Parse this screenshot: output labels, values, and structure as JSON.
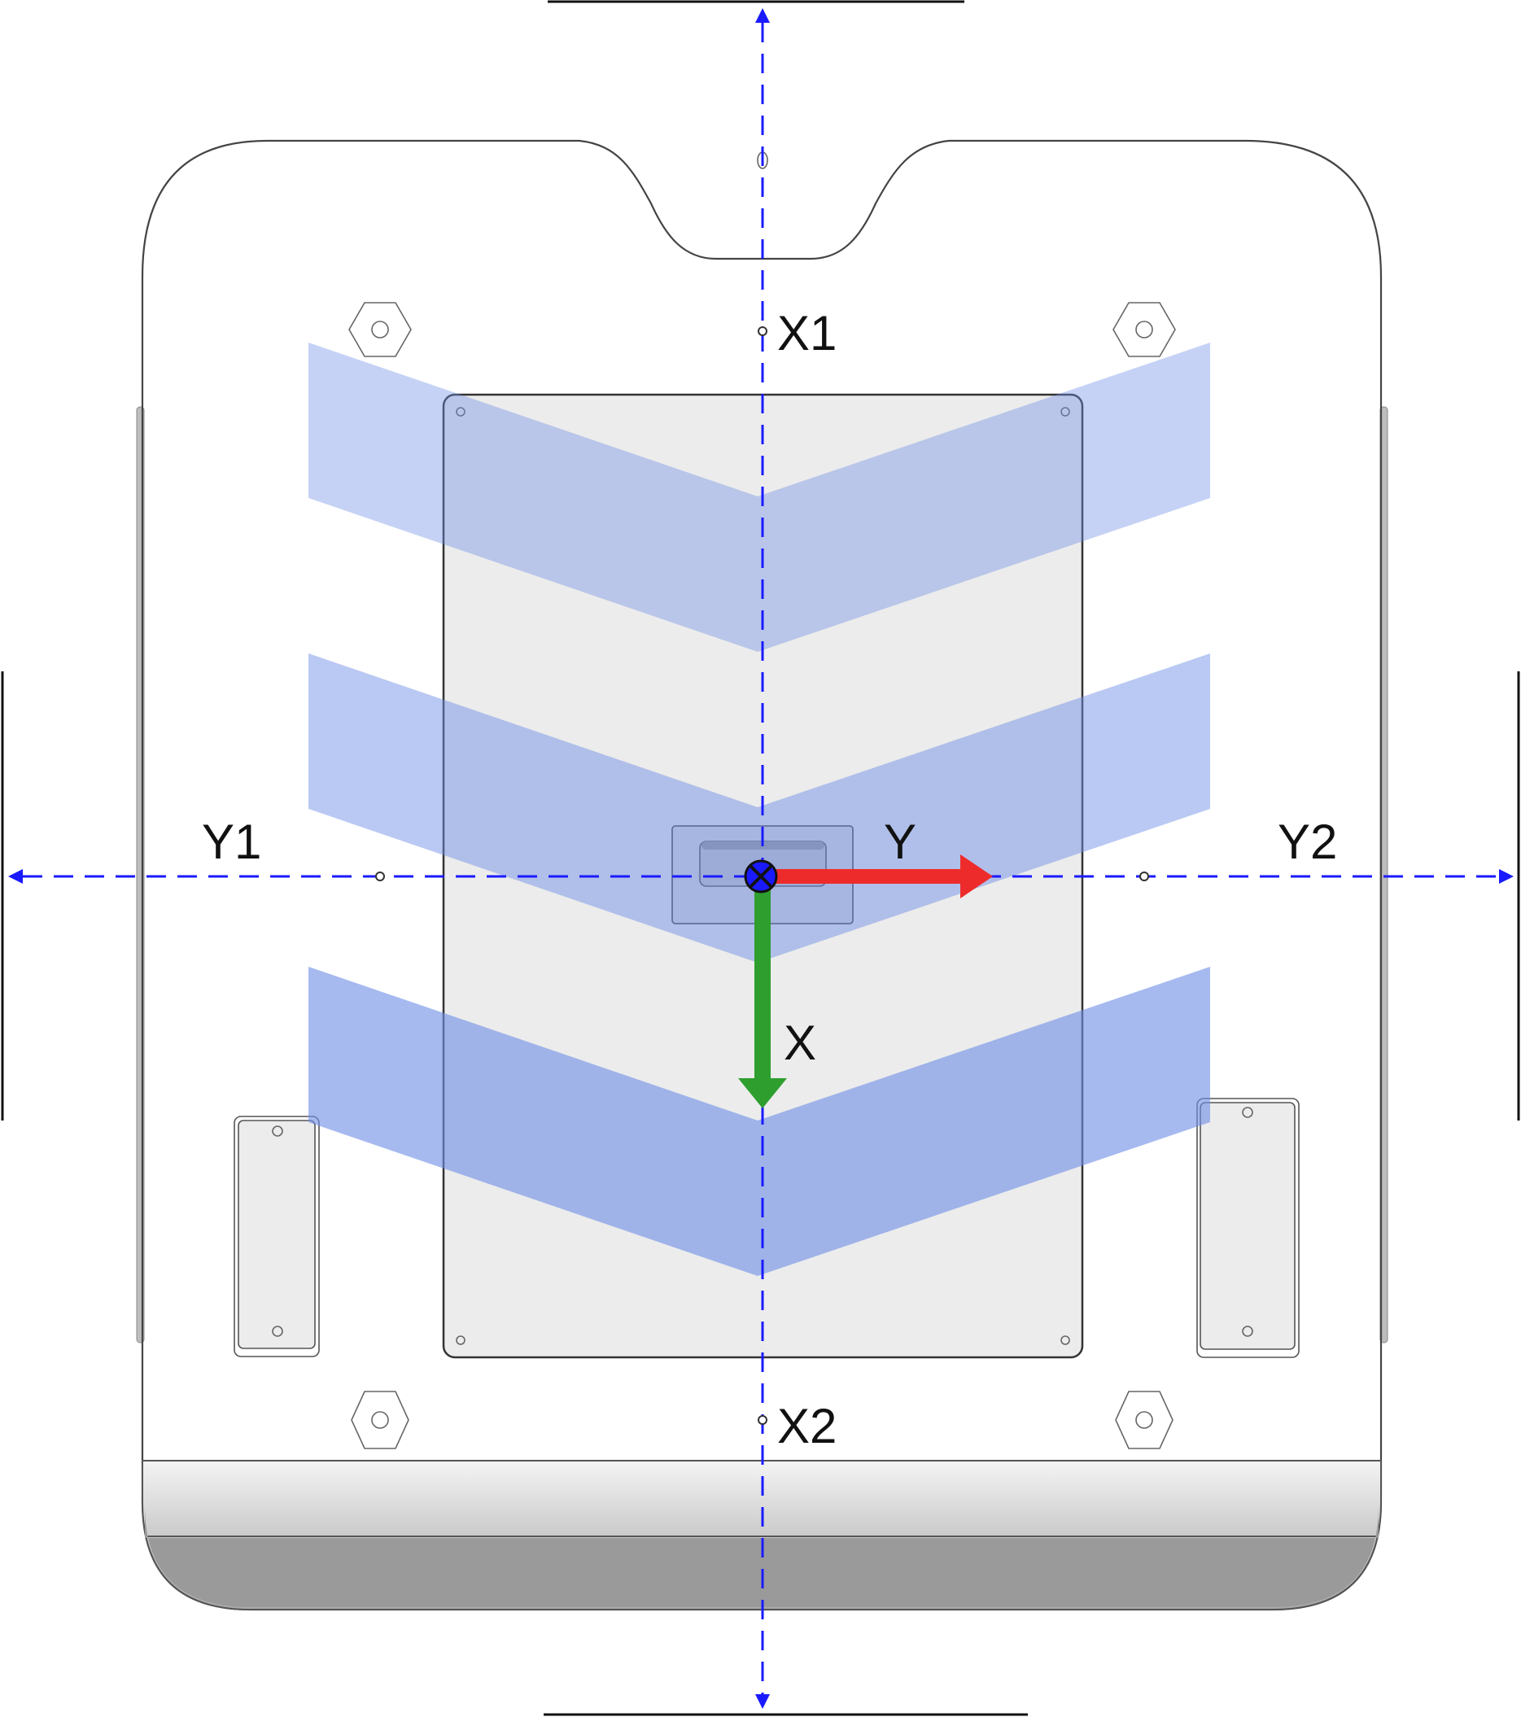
{
  "labels": {
    "x1": "X1",
    "x2": "X2",
    "y1": "Y1",
    "y2": "Y2",
    "x_axis": "X",
    "y_axis": "Y"
  },
  "colors": {
    "dashed_axis": "#1a1aff",
    "x_arrow": "#2e9e2e",
    "y_arrow": "#ee2b2b",
    "chevron": "#6f8fe6",
    "panel_fill": "#ececec",
    "bumper": "#9a9a9a",
    "outline": "#444444"
  },
  "icons": {
    "direction_marks": "chevron-down",
    "origin": "origin-cross-icon",
    "hex_nut": "hex-nut-icon"
  }
}
